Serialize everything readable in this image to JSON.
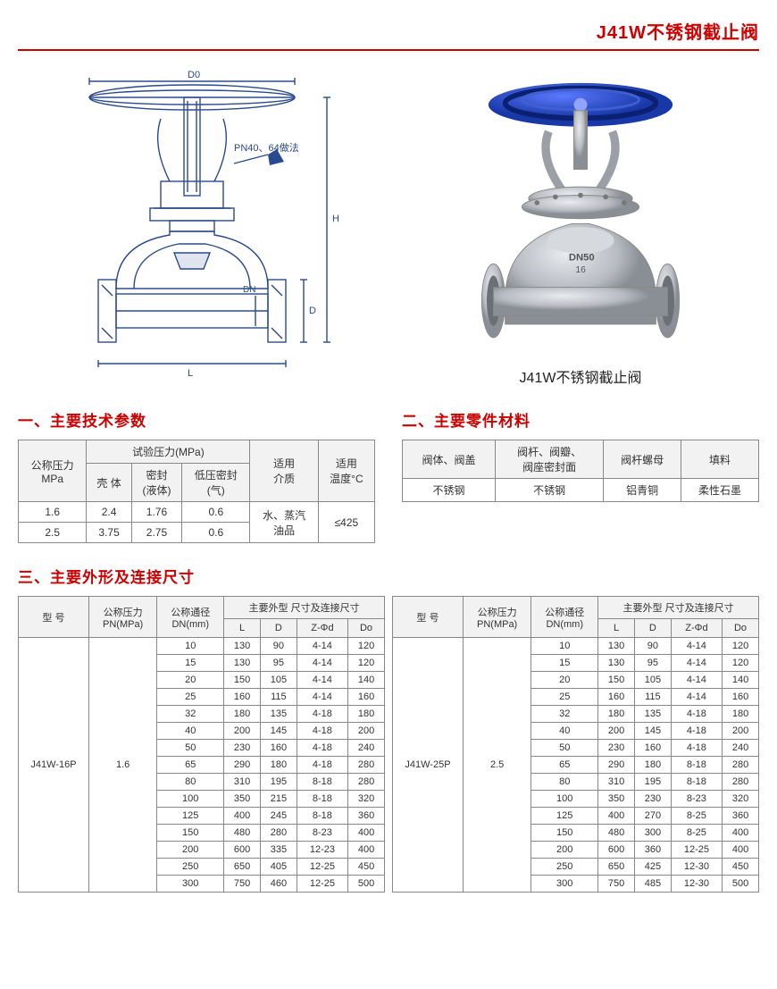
{
  "title": "J41W不锈钢截止阀",
  "photo_caption": "J41W不锈钢截止阀",
  "diagram_labels": {
    "d0": "D0",
    "d": "D",
    "l": "L",
    "h": "H",
    "dn": "DN",
    "note": "PN40、64做法"
  },
  "colors": {
    "accent": "#c00",
    "diagram_stroke": "#2a4a8f",
    "handwheel_photo": "#2850d8",
    "valve_body": "#b8bcc2"
  },
  "section1": {
    "title": "一、主要技术参数",
    "header_top": [
      "公称压力\nMPa",
      "试验压力(MPa)",
      "适用\n介质",
      "适用\n温度°C"
    ],
    "header_sub": [
      "壳 体",
      "密封\n(液体)",
      "低压密封\n(气)"
    ],
    "rows": [
      [
        "1.6",
        "2.4",
        "1.76",
        "0.6"
      ],
      [
        "2.5",
        "3.75",
        "2.75",
        "0.6"
      ]
    ],
    "medium": "水、蒸汽\n油品",
    "temp": "≤425"
  },
  "section2": {
    "title": "二、主要零件材料",
    "headers": [
      "阀体、阀盖",
      "阀杆、阀瓣、\n阀座密封面",
      "阀杆螺母",
      "填料"
    ],
    "row": [
      "不锈钢",
      "不锈钢",
      "铝青铜",
      "柔性石墨"
    ]
  },
  "section3": {
    "title": "三、主要外形及连接尺寸",
    "header_top": [
      "型 号",
      "公称压力\nPN(MPa)",
      "公称通径\nDN(mm)",
      "主要外型 尺寸及连接尺寸"
    ],
    "header_sub": [
      "L",
      "D",
      "Z-Φd",
      "Do"
    ],
    "left": {
      "model": "J41W-16P",
      "pn": "1.6",
      "rows": [
        [
          "10",
          "130",
          "90",
          "4-14",
          "120"
        ],
        [
          "15",
          "130",
          "95",
          "4-14",
          "120"
        ],
        [
          "20",
          "150",
          "105",
          "4-14",
          "140"
        ],
        [
          "25",
          "160",
          "115",
          "4-14",
          "160"
        ],
        [
          "32",
          "180",
          "135",
          "4-18",
          "180"
        ],
        [
          "40",
          "200",
          "145",
          "4-18",
          "200"
        ],
        [
          "50",
          "230",
          "160",
          "4-18",
          "240"
        ],
        [
          "65",
          "290",
          "180",
          "4-18",
          "280"
        ],
        [
          "80",
          "310",
          "195",
          "8-18",
          "280"
        ],
        [
          "100",
          "350",
          "215",
          "8-18",
          "320"
        ],
        [
          "125",
          "400",
          "245",
          "8-18",
          "360"
        ],
        [
          "150",
          "480",
          "280",
          "8-23",
          "400"
        ],
        [
          "200",
          "600",
          "335",
          "12-23",
          "400"
        ],
        [
          "250",
          "650",
          "405",
          "12-25",
          "450"
        ],
        [
          "300",
          "750",
          "460",
          "12-25",
          "500"
        ]
      ]
    },
    "right": {
      "model": "J41W-25P",
      "pn": "2.5",
      "rows": [
        [
          "10",
          "130",
          "90",
          "4-14",
          "120"
        ],
        [
          "15",
          "130",
          "95",
          "4-14",
          "120"
        ],
        [
          "20",
          "150",
          "105",
          "4-14",
          "140"
        ],
        [
          "25",
          "160",
          "115",
          "4-14",
          "160"
        ],
        [
          "32",
          "180",
          "135",
          "4-18",
          "180"
        ],
        [
          "40",
          "200",
          "145",
          "4-18",
          "200"
        ],
        [
          "50",
          "230",
          "160",
          "4-18",
          "240"
        ],
        [
          "65",
          "290",
          "180",
          "8-18",
          "280"
        ],
        [
          "80",
          "310",
          "195",
          "8-18",
          "280"
        ],
        [
          "100",
          "350",
          "230",
          "8-23",
          "320"
        ],
        [
          "125",
          "400",
          "270",
          "8-25",
          "360"
        ],
        [
          "150",
          "480",
          "300",
          "8-25",
          "400"
        ],
        [
          "200",
          "600",
          "360",
          "12-25",
          "400"
        ],
        [
          "250",
          "650",
          "425",
          "12-30",
          "450"
        ],
        [
          "300",
          "750",
          "485",
          "12-30",
          "500"
        ]
      ]
    }
  }
}
